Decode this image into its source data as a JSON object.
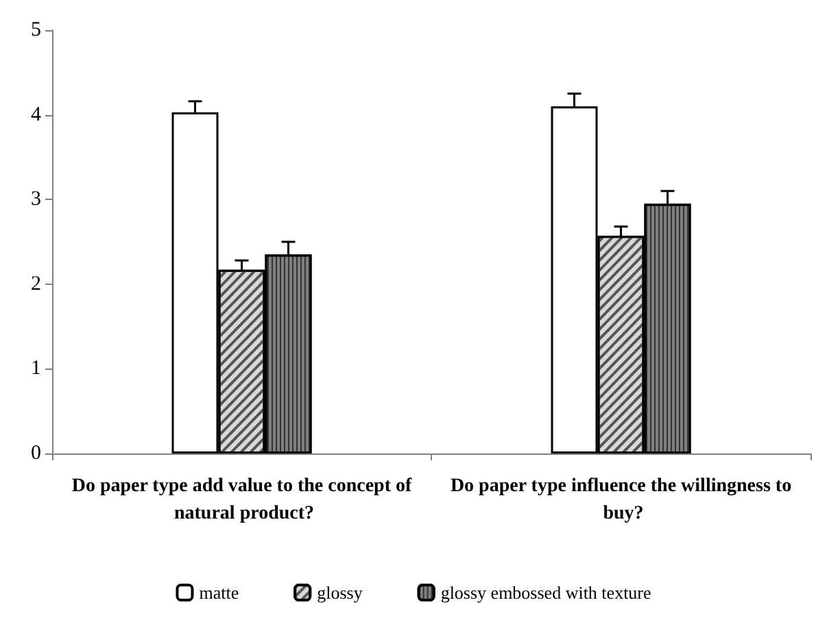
{
  "chart_data": {
    "type": "bar",
    "categories": [
      "Do paper type add value to the concept of natural product?",
      "Do paper type influence the willingness to buy?"
    ],
    "series": [
      {
        "name": "matte",
        "color": "#ffffff",
        "values": [
          4.03,
          4.1
        ],
        "errors": [
          0.13,
          0.15
        ]
      },
      {
        "name": "glossy",
        "color": "#d9d9d9",
        "values": [
          2.17,
          2.57
        ],
        "errors": [
          0.11,
          0.11
        ]
      },
      {
        "name": "glossy embossed with texture",
        "color": "#808080",
        "values": [
          2.35,
          2.95
        ],
        "errors": [
          0.15,
          0.15
        ]
      }
    ],
    "ylim": [
      0,
      5
    ],
    "yticks": [
      0,
      1,
      2,
      3,
      4,
      5
    ],
    "grid": false,
    "legend": "bottom"
  }
}
